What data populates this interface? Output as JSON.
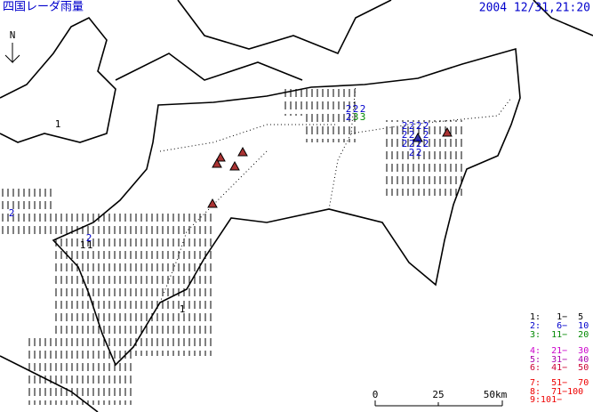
{
  "header": {
    "title": "四国レーダ雨量",
    "timestamp": "2004 12/31,21:20"
  },
  "compass": "N",
  "rain_cells": [
    2,
    2,
    2,
    2,
    3,
    3,
    2,
    2,
    2,
    2,
    2,
    2,
    2,
    2,
    2,
    2,
    2,
    2,
    2,
    2,
    2,
    1,
    1,
    1,
    1
  ],
  "legend": [
    {
      "label": "1:   1−  5",
      "color": "#000000"
    },
    {
      "label": "2:   6−  10",
      "color": "#0000cc"
    },
    {
      "label": "3:  11−  20",
      "color": "#008800"
    },
    {
      "label": "4:  21−  30",
      "color": "#cc00cc"
    },
    {
      "label": "5:  31−  40",
      "color": "#aa00aa"
    },
    {
      "label": "6:  41−  50",
      "color": "#cc0033"
    },
    {
      "label": "7:  51−  70",
      "color": "#ee0000"
    },
    {
      "label": "8:  71−100",
      "color": "#ee0000"
    },
    {
      "label": "9:101−",
      "color": "#ee0000"
    }
  ],
  "scale": {
    "labels": [
      "0",
      "25",
      "50km"
    ]
  }
}
